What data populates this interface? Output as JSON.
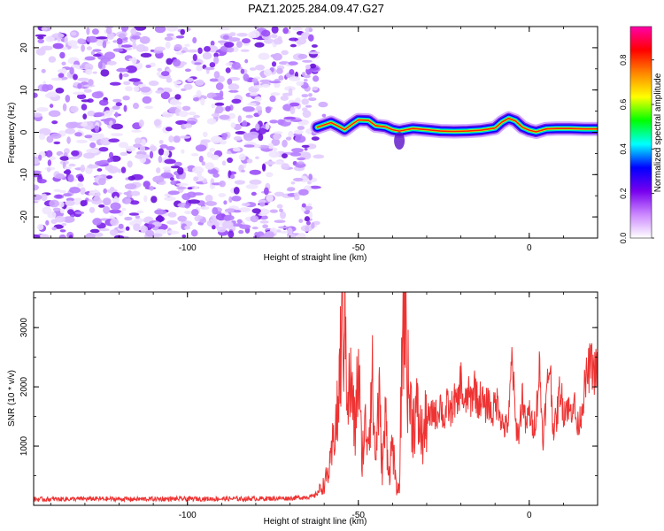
{
  "figure": {
    "title": "PAZ1.2025.284.09.47.G27"
  },
  "chart_data": [
    {
      "type": "heatmap",
      "xlabel": "Height of straight line (km)",
      "ylabel": "Frequency (Hz)",
      "xlim": [
        -145,
        20
      ],
      "ylim": [
        -25,
        25
      ],
      "xticks": [
        -100,
        -50,
        0
      ],
      "xtick_labels": [
        "-100",
        "-50",
        "0"
      ],
      "yticks": [
        -20,
        -10,
        0,
        10,
        20
      ],
      "ytick_labels": [
        "-20",
        "-10",
        "0",
        "10",
        "20"
      ],
      "noise_region_x": [
        -145,
        -62
      ],
      "signal_track": {
        "x": [
          -62,
          -58,
          -56,
          -54,
          -52,
          -50,
          -47,
          -45,
          -42,
          -40,
          -38,
          -36,
          -34,
          -30,
          -26,
          -22,
          -18,
          -14,
          -10,
          -8,
          -6,
          -4,
          -2,
          0,
          2,
          5,
          8,
          12,
          16,
          20
        ],
        "frequency": [
          1.2,
          2.3,
          1.5,
          0.6,
          1.8,
          2.9,
          2.8,
          1.6,
          1.3,
          0.6,
          0.3,
          0.6,
          0.9,
          0.6,
          0.3,
          0.2,
          0.3,
          0.5,
          1.0,
          2.4,
          3.3,
          2.7,
          1.2,
          0.5,
          0.1,
          0.8,
          0.9,
          0.9,
          0.8,
          0.8
        ]
      },
      "colorbar": {
        "label": "Normalized spectral amplitude",
        "range": [
          0.0,
          0.95
        ],
        "ticks": [
          0.0,
          0.2,
          0.4,
          0.6,
          0.8
        ],
        "tick_labels": [
          "0.0",
          "0.2",
          "0.4",
          "0.6",
          "0.8"
        ],
        "colors": [
          "#ffffff",
          "#cc88ff",
          "#7700ee",
          "#0000ff",
          "#00ffff",
          "#00ff00",
          "#ffff00",
          "#ff8800",
          "#ff0000",
          "#ff00aa"
        ]
      }
    },
    {
      "type": "line",
      "xlabel": "Height of straight line (km)",
      "ylabel": "SNR (10 * v/v)",
      "xlim": [
        -145,
        20
      ],
      "ylim": [
        0,
        3600
      ],
      "xticks": [
        -100,
        -50,
        0
      ],
      "xtick_labels": [
        "-100",
        "-50",
        "0"
      ],
      "yticks": [
        1000,
        2000,
        3000
      ],
      "ytick_labels": [
        "1000",
        "2000",
        "3000"
      ],
      "line_color": "#ee3333",
      "series": [
        {
          "name": "SNR",
          "x": [
            -145,
            -130,
            -115,
            -100,
            -85,
            -70,
            -63,
            -60,
            -58,
            -57,
            -56,
            -55,
            -54,
            -53,
            -52,
            -51,
            -50,
            -49,
            -48,
            -47,
            -46,
            -45,
            -44,
            -43,
            -42,
            -41,
            -40,
            -39,
            -38,
            -37,
            -36.5,
            -36,
            -35.5,
            -35,
            -34,
            -33,
            -32,
            -31,
            -30,
            -29,
            -28,
            -27,
            -26,
            -25,
            -24,
            -23,
            -22,
            -21,
            -20,
            -19,
            -18,
            -17,
            -16,
            -15,
            -14,
            -13,
            -12,
            -11,
            -10,
            -9,
            -8,
            -7,
            -6,
            -5,
            -4,
            -3,
            -2,
            -1,
            0,
            1,
            2,
            3,
            4,
            5,
            6,
            7,
            8,
            9,
            10,
            11,
            12,
            13,
            14,
            15,
            16,
            17,
            18,
            19,
            20
          ],
          "values": [
            100,
            110,
            105,
            110,
            110,
            120,
            150,
            350,
            700,
            1300,
            1500,
            2800,
            3200,
            1900,
            2000,
            1200,
            2400,
            800,
            1300,
            1200,
            2200,
            700,
            1900,
            600,
            1500,
            500,
            1100,
            300,
            250,
            3100,
            3500,
            3000,
            2100,
            1800,
            1400,
            1600,
            1300,
            1100,
            1500,
            1450,
            1600,
            1500,
            1750,
            1400,
            1700,
            1550,
            1800,
            1650,
            2150,
            1600,
            1900,
            1750,
            2050,
            1700,
            1850,
            1600,
            1800,
            1500,
            1700,
            1750,
            1400,
            1300,
            1450,
            2550,
            1350,
            1200,
            1900,
            1300,
            1600,
            1300,
            1500,
            2350,
            1100,
            1800,
            2450,
            1300,
            1450,
            2000,
            1600,
            1700,
            1550,
            1800,
            1300,
            1500,
            1900,
            2200,
            2400,
            2250,
            2300
          ]
        }
      ]
    }
  ]
}
